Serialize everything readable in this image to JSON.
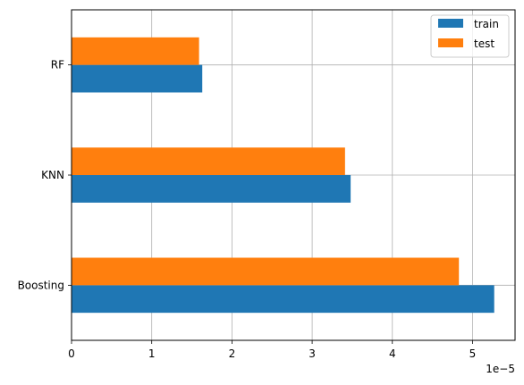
{
  "chart_data": {
    "type": "bar",
    "orientation": "horizontal",
    "categories": [
      "Boosting",
      "KNN",
      "RF"
    ],
    "series": [
      {
        "name": "train",
        "color": "#1f77b4",
        "values": [
          5.27e-05,
          3.48e-05,
          1.63e-05
        ]
      },
      {
        "name": "test",
        "color": "#ff7f0e",
        "values": [
          4.83e-05,
          3.41e-05,
          1.59e-05
        ]
      }
    ],
    "xlim": [
      0,
      5.53e-05
    ],
    "xticks": [
      0,
      1,
      2,
      3,
      4,
      5
    ],
    "xtick_multiplier": 1e-05,
    "offset_text": "1e−5",
    "grid": true,
    "legend": "top-right"
  }
}
